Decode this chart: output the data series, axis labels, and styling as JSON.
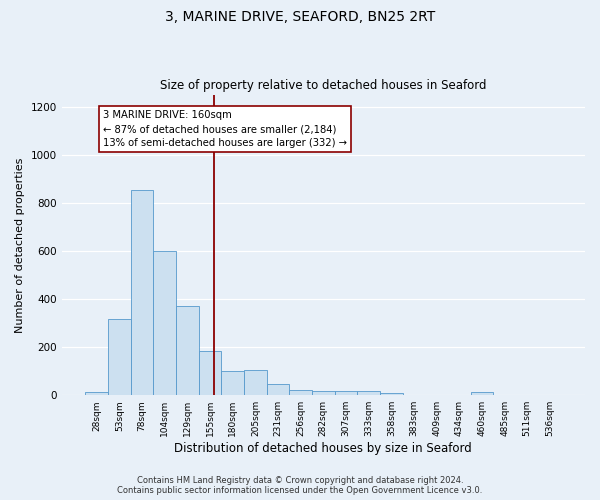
{
  "title": "3, MARINE DRIVE, SEAFORD, BN25 2RT",
  "subtitle": "Size of property relative to detached houses in Seaford",
  "xlabel": "Distribution of detached houses by size in Seaford",
  "ylabel": "Number of detached properties",
  "bin_labels": [
    "28sqm",
    "53sqm",
    "78sqm",
    "104sqm",
    "129sqm",
    "155sqm",
    "180sqm",
    "205sqm",
    "231sqm",
    "256sqm",
    "282sqm",
    "307sqm",
    "333sqm",
    "358sqm",
    "383sqm",
    "409sqm",
    "434sqm",
    "460sqm",
    "485sqm",
    "511sqm",
    "536sqm"
  ],
  "bar_heights": [
    15,
    315,
    855,
    600,
    370,
    185,
    100,
    105,
    45,
    20,
    18,
    18,
    18,
    10,
    0,
    0,
    0,
    12,
    0,
    0,
    0
  ],
  "bar_color": "#cce0f0",
  "bar_edge_color": "#5599cc",
  "vline_bin_index": 5.18,
  "vline_color": "#8b0000",
  "annotation_text": "3 MARINE DRIVE: 160sqm\n← 87% of detached houses are smaller (2,184)\n13% of semi-detached houses are larger (332) →",
  "annotation_box_color": "white",
  "annotation_box_edge": "#8b0000",
  "ylim": [
    0,
    1250
  ],
  "yticks": [
    0,
    200,
    400,
    600,
    800,
    1000,
    1200
  ],
  "footer_line1": "Contains HM Land Registry data © Crown copyright and database right 2024.",
  "footer_line2": "Contains public sector information licensed under the Open Government Licence v3.0.",
  "bg_color": "#e8f0f8",
  "plot_bg_color": "#e8f0f8",
  "title_fontsize": 10,
  "subtitle_fontsize": 8.5,
  "ylabel_fontsize": 8,
  "xlabel_fontsize": 8.5
}
